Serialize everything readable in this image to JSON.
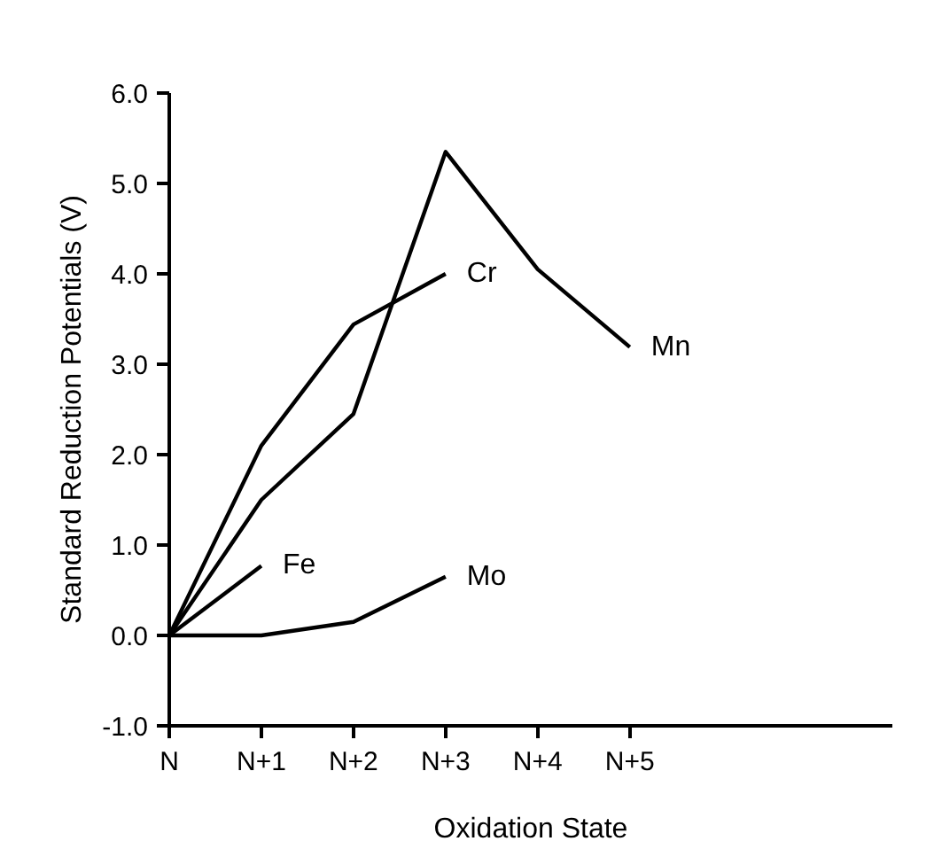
{
  "chart_data": {
    "type": "line",
    "xlabel": "Oxidation State",
    "ylabel": "Standard Reduction Potentials (V)",
    "categories": [
      "N",
      "N+1",
      "N+2",
      "N+3",
      "N+4",
      "N+5"
    ],
    "series": [
      {
        "name": "Mn",
        "color": "#000000",
        "values": [
          0,
          1.5,
          2.45,
          5.35,
          4.05,
          3.19
        ]
      },
      {
        "name": "Cr",
        "color": "#000000",
        "values": [
          0,
          2.1,
          3.44,
          4.0,
          null,
          null
        ]
      },
      {
        "name": "Fe",
        "color": "#000000",
        "values": [
          0,
          0.77,
          null,
          null,
          null,
          null
        ]
      },
      {
        "name": "Mo",
        "color": "#000000",
        "values": [
          0,
          0.0,
          0.15,
          0.65,
          null,
          null
        ]
      }
    ],
    "ylim": [
      -1,
      6
    ],
    "yticks": [
      {
        "value": -1,
        "label": "-1.0"
      },
      {
        "value": 0,
        "label": "0.0"
      },
      {
        "value": 1,
        "label": "1.0"
      },
      {
        "value": 2,
        "label": "2.0"
      },
      {
        "value": 3,
        "label": "3.0"
      },
      {
        "value": 4,
        "label": "4.0"
      },
      {
        "value": 5,
        "label": "5.0"
      },
      {
        "value": 6,
        "label": "6.0"
      }
    ],
    "grid": false,
    "marker": "none",
    "line_style": "solid"
  }
}
